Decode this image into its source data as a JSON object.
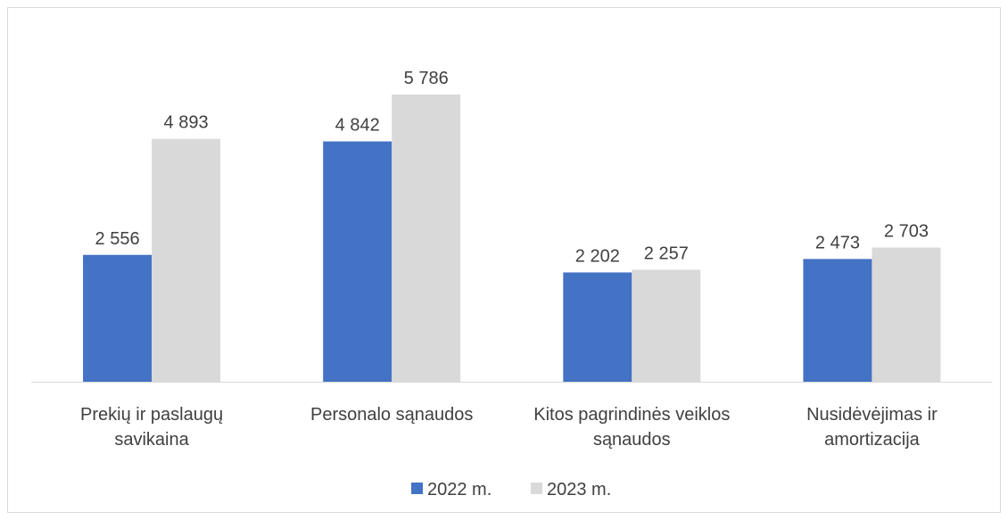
{
  "chart_data": {
    "type": "bar",
    "categories": [
      "Prekių ir paslaugų\nsavikaina",
      "Personalo sąnaudos",
      "Kitos pagrindinės veiklos\nsąnaudos",
      "Nusidėvėjimas ir\namortizacija"
    ],
    "series": [
      {
        "name": "2022 m.",
        "color": "#4472c4",
        "values": [
          2556,
          4842,
          2202,
          2473
        ],
        "value_labels": [
          "2 556",
          "4 842",
          "2 202",
          "2 473"
        ]
      },
      {
        "name": "2023 m.",
        "color": "#d9d9d9",
        "values": [
          4893,
          5786,
          2257,
          2703
        ],
        "value_labels": [
          "4 893",
          "5 786",
          "2 257",
          "2 703"
        ]
      }
    ],
    "legend": "bottom"
  }
}
